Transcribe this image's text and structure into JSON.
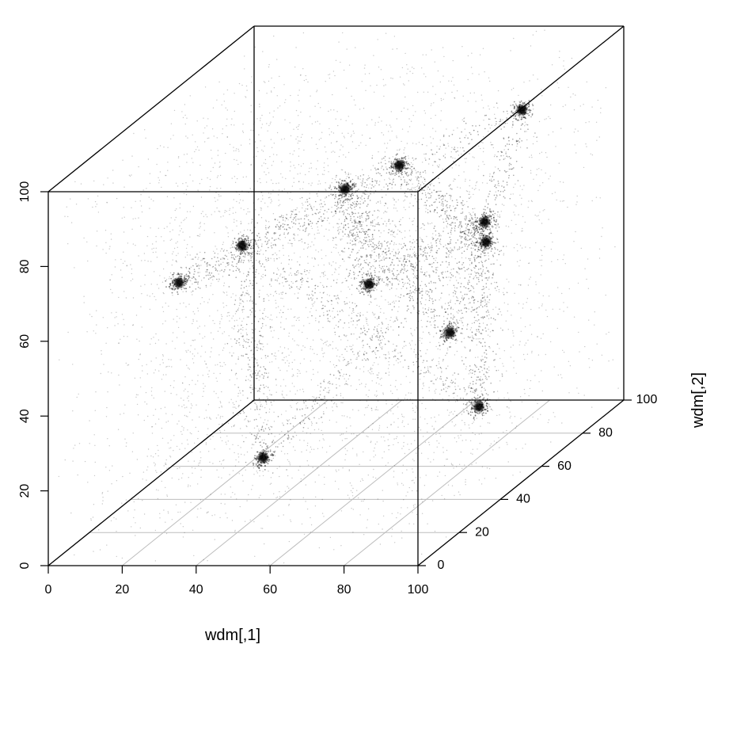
{
  "chart_data": {
    "type": "scatter",
    "projection": "3d-box",
    "xlabel": "wdm[,1]",
    "ylabel": "wdm[,2]",
    "zlabel": "",
    "xlim": [
      0,
      100
    ],
    "ylim": [
      0,
      100
    ],
    "zlim": [
      0,
      100
    ],
    "x_ticks": [
      "0",
      "20",
      "40",
      "60",
      "80",
      "100"
    ],
    "y_ticks": [
      "0",
      "20",
      "40",
      "60",
      "80",
      "100"
    ],
    "z_ticks": [
      "0",
      "20",
      "40",
      "60",
      "80",
      "100"
    ],
    "box": true,
    "grid": "floor",
    "point_color": "#000000",
    "dense_clusters": [
      {
        "x": 27,
        "y": 15,
        "z": 69
      },
      {
        "x": 48,
        "y": 8,
        "z": 82
      },
      {
        "x": 58,
        "y": 40,
        "z": 83
      },
      {
        "x": 66,
        "y": 52,
        "z": 84
      },
      {
        "x": 47,
        "y": 20,
        "z": 20
      },
      {
        "x": 78,
        "y": 55,
        "z": 38
      },
      {
        "x": 85,
        "y": 60,
        "z": 60
      },
      {
        "x": 93,
        "y": 45,
        "z": 72
      },
      {
        "x": 88,
        "y": 72,
        "z": 90
      },
      {
        "x": 97,
        "y": 35,
        "z": 27
      },
      {
        "x": 70,
        "y": 30,
        "z": 62
      }
    ]
  }
}
